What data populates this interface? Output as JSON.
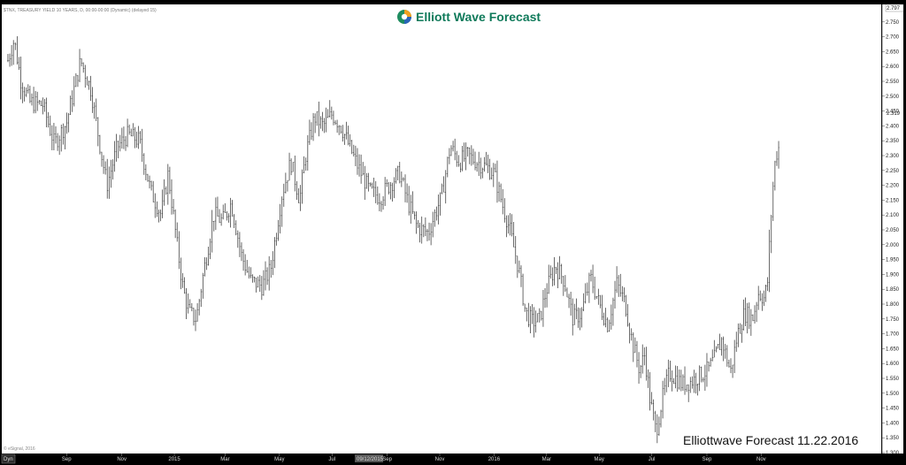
{
  "brand": {
    "name": "Elliott Wave Forecast"
  },
  "header": {
    "symbol_line": "$TNX, TREASURY YIELD 10 YEARS, D, 00:00-00:00 (Dynamic) (delayed 15)"
  },
  "footer": {
    "copyright": "© eSignal, 2016",
    "stamp": "Elliottwave Forecast 11.22.2016",
    "timeframe_button": "Dyn",
    "date_marker": "09/12/2015"
  },
  "price_markers": {
    "last_price": "2.319",
    "top_value": "2.797"
  },
  "chart_data": {
    "type": "ohlc",
    "title": "",
    "xlabel": "",
    "ylabel": "",
    "ylim": [
      1.3,
      2.8
    ],
    "y_ticks": [
      1.3,
      1.35,
      1.4,
      1.45,
      1.5,
      1.55,
      1.6,
      1.65,
      1.7,
      1.75,
      1.8,
      1.85,
      1.9,
      1.95,
      2.0,
      2.05,
      2.1,
      2.15,
      2.2,
      2.25,
      2.3,
      2.35,
      2.4,
      2.45,
      2.5,
      2.55,
      2.6,
      2.65,
      2.7,
      2.75
    ],
    "y_tick_labels": [
      "1.300",
      "1.350",
      "1.400",
      "1.450",
      "1.500",
      "1.550",
      "1.600",
      "1.650",
      "1.700",
      "1.750",
      "1.800",
      "1.850",
      "1.900",
      "1.950",
      "2.000",
      "2.050",
      "2.100",
      "2.150",
      "2.200",
      "2.250",
      "2.300",
      "2.350",
      "2.400",
      "2.450",
      "2.500",
      "2.550",
      "2.600",
      "2.650",
      "2.700",
      "2.750"
    ],
    "x_range": [
      0,
      1000
    ],
    "x_ticks": [
      {
        "label": "Sep",
        "x": 72
      },
      {
        "label": "Nov",
        "x": 135
      },
      {
        "label": "2015",
        "x": 195
      },
      {
        "label": "Mar",
        "x": 253
      },
      {
        "label": "May",
        "x": 315
      },
      {
        "label": "Jul",
        "x": 375
      },
      {
        "label": "Sep",
        "x": 438
      },
      {
        "label": "Nov",
        "x": 498
      },
      {
        "label": "2016",
        "x": 560
      },
      {
        "label": "Mar",
        "x": 620
      },
      {
        "label": "May",
        "x": 680
      },
      {
        "label": "Jul",
        "x": 740
      },
      {
        "label": "Sep",
        "x": 803
      },
      {
        "label": "Nov",
        "x": 865
      }
    ],
    "anchors": [
      [
        5,
        2.62
      ],
      [
        12,
        2.69
      ],
      [
        20,
        2.55
      ],
      [
        30,
        2.48
      ],
      [
        45,
        2.47
      ],
      [
        58,
        2.34
      ],
      [
        72,
        2.41
      ],
      [
        88,
        2.62
      ],
      [
        100,
        2.52
      ],
      [
        112,
        2.3
      ],
      [
        118,
        2.2
      ],
      [
        130,
        2.33
      ],
      [
        142,
        2.37
      ],
      [
        155,
        2.35
      ],
      [
        168,
        2.18
      ],
      [
        180,
        2.1
      ],
      [
        188,
        2.24
      ],
      [
        198,
        2.0
      ],
      [
        205,
        1.85
      ],
      [
        212,
        1.77
      ],
      [
        220,
        1.75
      ],
      [
        228,
        1.9
      ],
      [
        240,
        2.1
      ],
      [
        250,
        2.08
      ],
      [
        260,
        2.14
      ],
      [
        272,
        1.96
      ],
      [
        282,
        1.88
      ],
      [
        295,
        1.86
      ],
      [
        305,
        1.92
      ],
      [
        318,
        2.17
      ],
      [
        328,
        2.28
      ],
      [
        338,
        2.15
      ],
      [
        345,
        2.3
      ],
      [
        355,
        2.43
      ],
      [
        365,
        2.4
      ],
      [
        375,
        2.44
      ],
      [
        385,
        2.4
      ],
      [
        395,
        2.33
      ],
      [
        405,
        2.26
      ],
      [
        418,
        2.18
      ],
      [
        430,
        2.16
      ],
      [
        440,
        2.2
      ],
      [
        452,
        2.24
      ],
      [
        462,
        2.14
      ],
      [
        472,
        2.06
      ],
      [
        485,
        2.04
      ],
      [
        492,
        2.1
      ],
      [
        500,
        2.16
      ],
      [
        510,
        2.33
      ],
      [
        520,
        2.28
      ],
      [
        530,
        2.3
      ],
      [
        540,
        2.28
      ],
      [
        552,
        2.26
      ],
      [
        560,
        2.24
      ],
      [
        570,
        2.13
      ],
      [
        578,
        2.05
      ],
      [
        588,
        1.92
      ],
      [
        596,
        1.77
      ],
      [
        604,
        1.74
      ],
      [
        612,
        1.75
      ],
      [
        620,
        1.85
      ],
      [
        630,
        1.93
      ],
      [
        640,
        1.88
      ],
      [
        650,
        1.75
      ],
      [
        660,
        1.77
      ],
      [
        670,
        1.89
      ],
      [
        680,
        1.8
      ],
      [
        690,
        1.73
      ],
      [
        700,
        1.87
      ],
      [
        710,
        1.8
      ],
      [
        718,
        1.67
      ],
      [
        726,
        1.58
      ],
      [
        732,
        1.63
      ],
      [
        738,
        1.48
      ],
      [
        745,
        1.37
      ],
      [
        752,
        1.48
      ],
      [
        760,
        1.57
      ],
      [
        768,
        1.55
      ],
      [
        775,
        1.53
      ],
      [
        785,
        1.54
      ],
      [
        795,
        1.56
      ],
      [
        805,
        1.58
      ],
      [
        812,
        1.62
      ],
      [
        820,
        1.68
      ],
      [
        830,
        1.57
      ],
      [
        838,
        1.7
      ],
      [
        846,
        1.77
      ],
      [
        855,
        1.75
      ],
      [
        862,
        1.84
      ],
      [
        868,
        1.82
      ],
      [
        872,
        1.86
      ],
      [
        876,
        2.08
      ],
      [
        880,
        2.26
      ],
      [
        884,
        2.33
      ],
      [
        886,
        2.32
      ]
    ],
    "bar_step": 2.1,
    "grid": false,
    "legend": "none"
  }
}
